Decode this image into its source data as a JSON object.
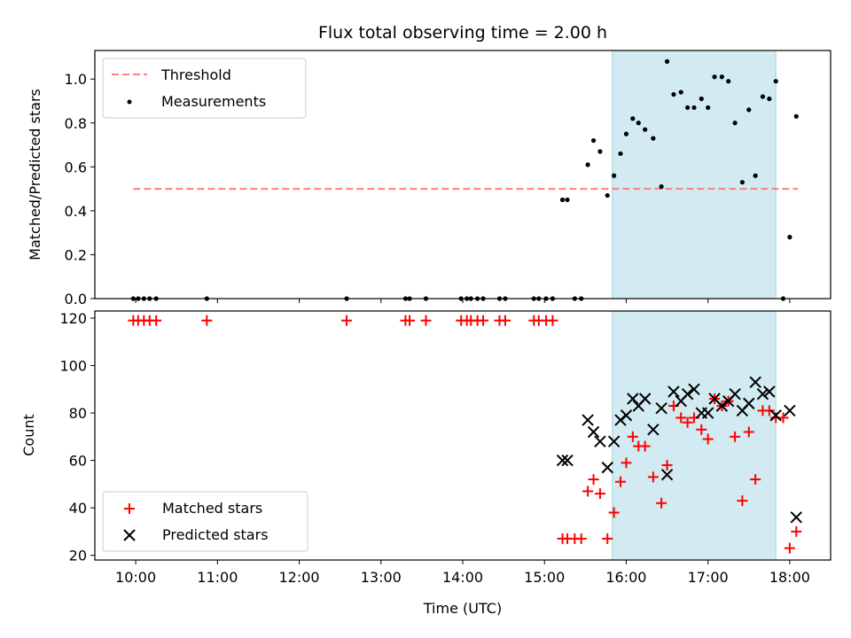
{
  "chart_data": [
    {
      "type": "scatter",
      "title": "Flux total observing time = 2.00 h",
      "xlabel": "",
      "ylabel": "Matched/Predicted stars",
      "xlim": [
        9.5,
        18.5
      ],
      "ylim": [
        0,
        1.13
      ],
      "yticks": [
        "0.0",
        "0.2",
        "0.4",
        "0.6",
        "0.8",
        "1.0"
      ],
      "ytick_values": [
        0,
        0.2,
        0.4,
        0.6,
        0.8,
        1.0
      ],
      "shaded_region": {
        "x_start": 15.83,
        "x_end": 17.83,
        "color": "#add8e6"
      },
      "legend_position": "top-left",
      "series": [
        {
          "name": "Threshold",
          "kind": "dashed-line",
          "color": "#ff7f7f",
          "x": [
            9.97,
            18.1
          ],
          "y": [
            0.5,
            0.5
          ]
        },
        {
          "name": "Measurements",
          "kind": "points",
          "color": "#000000",
          "x": [
            9.97,
            10.03,
            10.1,
            10.17,
            10.25,
            10.87,
            12.58,
            13.3,
            13.35,
            13.55,
            13.98,
            14.05,
            14.1,
            14.18,
            14.25,
            14.45,
            14.52,
            14.87,
            14.93,
            15.02,
            15.1,
            15.22,
            15.28,
            15.37,
            15.45,
            15.53,
            15.6,
            15.68,
            15.77,
            15.85,
            15.93,
            16.0,
            16.08,
            16.15,
            16.23,
            16.33,
            16.43,
            16.5,
            16.58,
            16.67,
            16.75,
            16.83,
            16.92,
            17.0,
            17.08,
            17.17,
            17.25,
            17.33,
            17.42,
            17.5,
            17.58,
            17.67,
            17.75,
            17.83,
            17.92,
            18.0,
            18.08
          ],
          "y": [
            0,
            0,
            0,
            0,
            0,
            0,
            0,
            0,
            0,
            0,
            0,
            0,
            0,
            0,
            0,
            0,
            0,
            0,
            0,
            0,
            0,
            0.45,
            0.45,
            0,
            0,
            0.61,
            0.72,
            0.67,
            0.47,
            0.56,
            0.66,
            0.75,
            0.82,
            0.8,
            0.77,
            0.73,
            0.51,
            1.08,
            0.93,
            0.94,
            0.87,
            0.87,
            0.91,
            0.87,
            1.01,
            1.01,
            0.99,
            0.8,
            0.53,
            0.86,
            0.56,
            0.92,
            0.91,
            0.99,
            0.0,
            0.28,
            0.83
          ]
        }
      ]
    },
    {
      "type": "scatter",
      "title": "",
      "xlabel": "Time (UTC)",
      "ylabel": "Count",
      "xlim": [
        9.5,
        18.5
      ],
      "ylim": [
        18,
        123
      ],
      "xticks": [
        "10:00",
        "11:00",
        "12:00",
        "13:00",
        "14:00",
        "15:00",
        "16:00",
        "17:00",
        "18:00"
      ],
      "xtick_values": [
        10,
        11,
        12,
        13,
        14,
        15,
        16,
        17,
        18
      ],
      "yticks": [
        "20",
        "40",
        "60",
        "80",
        "100",
        "120"
      ],
      "ytick_values": [
        20,
        40,
        60,
        80,
        100,
        120
      ],
      "shaded_region": {
        "x_start": 15.83,
        "x_end": 17.83,
        "color": "#add8e6"
      },
      "legend_position": "bottom-left",
      "series": [
        {
          "name": "Matched stars",
          "marker": "plus",
          "color": "#ff0000",
          "x": [
            9.97,
            10.03,
            10.1,
            10.17,
            10.25,
            10.87,
            12.58,
            13.3,
            13.35,
            13.55,
            13.98,
            14.05,
            14.1,
            14.18,
            14.25,
            14.45,
            14.52,
            14.87,
            14.93,
            15.02,
            15.1,
            15.22,
            15.28,
            15.37,
            15.45,
            15.53,
            15.6,
            15.68,
            15.77,
            15.85,
            15.93,
            16.0,
            16.08,
            16.15,
            16.23,
            16.33,
            16.43,
            16.5,
            16.58,
            16.67,
            16.75,
            16.83,
            16.92,
            17.0,
            17.08,
            17.17,
            17.25,
            17.33,
            17.42,
            17.5,
            17.58,
            17.67,
            17.75,
            17.83,
            17.92,
            18.0,
            18.08
          ],
          "y": [
            119,
            119,
            119,
            119,
            119,
            119,
            119,
            119,
            119,
            119,
            119,
            119,
            119,
            119,
            119,
            119,
            119,
            119,
            119,
            119,
            119,
            27,
            27,
            27,
            27,
            47,
            52,
            46,
            27,
            38,
            51,
            59,
            70,
            66,
            66,
            53,
            42,
            58,
            83,
            78,
            76,
            78,
            73,
            69,
            86,
            83,
            85,
            70,
            43,
            72,
            52,
            81,
            81,
            78,
            78,
            23,
            30
          ]
        },
        {
          "name": "Predicted stars",
          "marker": "x",
          "color": "#000000",
          "x": [
            15.22,
            15.28,
            15.53,
            15.6,
            15.68,
            15.77,
            15.85,
            15.93,
            16.0,
            16.08,
            16.15,
            16.23,
            16.33,
            16.43,
            16.5,
            16.58,
            16.67,
            16.75,
            16.83,
            16.92,
            17.0,
            17.08,
            17.17,
            17.25,
            17.33,
            17.42,
            17.5,
            17.58,
            17.67,
            17.75,
            17.83,
            18.0,
            18.08
          ],
          "y": [
            60,
            60,
            77,
            72,
            68,
            57,
            68,
            77,
            79,
            86,
            83,
            86,
            73,
            82,
            54,
            89,
            85,
            88,
            90,
            80,
            80,
            86,
            83,
            85,
            88,
            81,
            84,
            93,
            88,
            89,
            79,
            81,
            36
          ]
        }
      ]
    }
  ]
}
